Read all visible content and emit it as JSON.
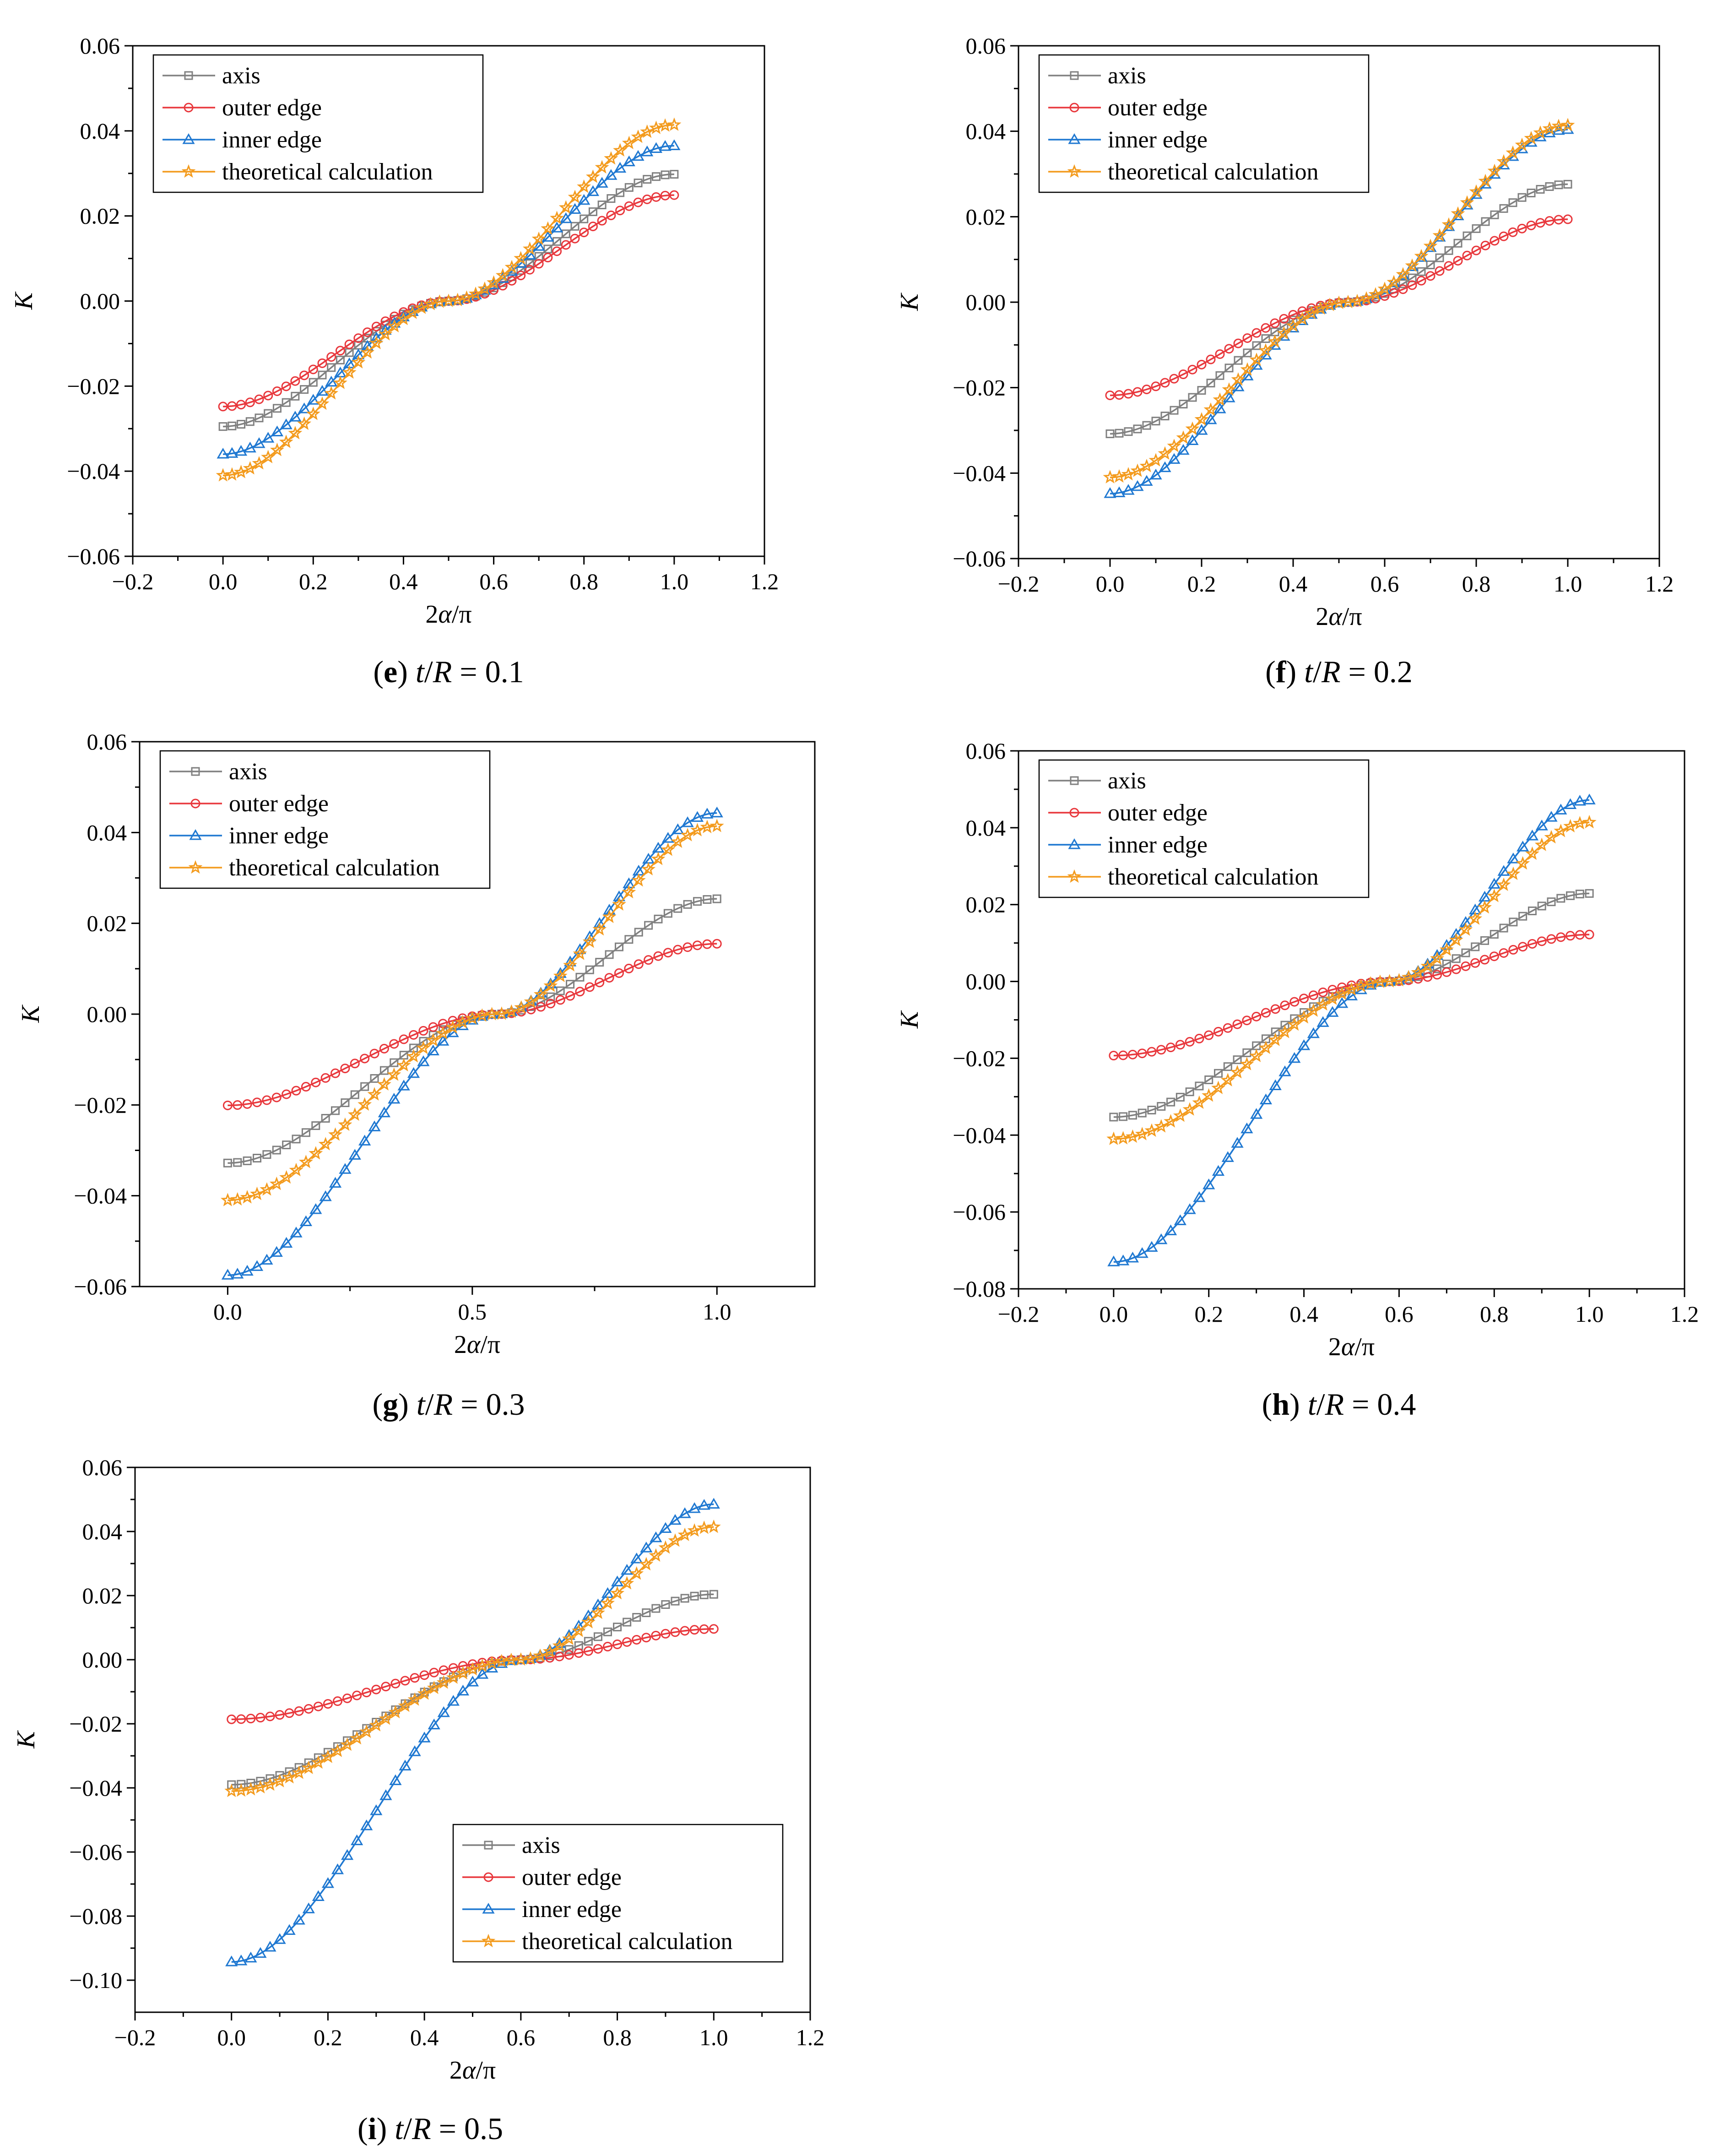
{
  "figure": {
    "legend_entries": [
      "axis",
      "outer edge",
      "inner edge",
      "theoretical calculation"
    ],
    "series_colors": {
      "axis": "#808080",
      "outer edge": "#e8383d",
      "inner edge": "#1f78d1",
      "theoretical calculation": "#f39b1e"
    },
    "marker_shapes": {
      "axis": "square",
      "outer edge": "circle",
      "inner edge": "triangle",
      "theoretical calculation": "star"
    }
  },
  "chart_data": [
    {
      "type": "line",
      "panel": "e",
      "caption_letter": "e",
      "caption_rest": " t/R = 0.1",
      "xlabel": "2α/π",
      "ylabel": "K",
      "xlim": [
        -0.2,
        1.2
      ],
      "ylim": [
        -0.06,
        0.06
      ],
      "xticks": [
        -0.2,
        0.0,
        0.2,
        0.4,
        0.6,
        0.8,
        1.0,
        1.2
      ],
      "xtick_labels": [
        "−0.2",
        "0.0",
        "0.2",
        "0.4",
        "0.6",
        "0.8",
        "1.0",
        "1.2"
      ],
      "yticks": [
        -0.06,
        -0.04,
        -0.02,
        0.0,
        0.02,
        0.04,
        0.06
      ],
      "ytick_labels": [
        "−0.06",
        "−0.04",
        "−0.02",
        "0.00",
        "0.02",
        "0.04",
        "0.06"
      ],
      "legend_position": "top-left",
      "x_zero_value": 0.5,
      "series": [
        {
          "name": "axis",
          "start": -0.0295,
          "end": 0.0298
        },
        {
          "name": "outer edge",
          "start": -0.0248,
          "end": 0.0249
        },
        {
          "name": "inner edge",
          "start": -0.036,
          "end": 0.0365
        },
        {
          "name": "theoretical calculation",
          "start": -0.041,
          "end": 0.0414
        }
      ]
    },
    {
      "type": "line",
      "panel": "f",
      "caption_letter": "f",
      "caption_rest": " t/R = 0.2",
      "xlabel": "2α/π",
      "ylabel": "K",
      "xlim": [
        -0.2,
        1.2
      ],
      "ylim": [
        -0.06,
        0.06
      ],
      "xticks": [
        -0.2,
        0.0,
        0.2,
        0.4,
        0.6,
        0.8,
        1.0,
        1.2
      ],
      "xtick_labels": [
        "−0.2",
        "0.0",
        "0.2",
        "0.4",
        "0.6",
        "0.8",
        "1.0",
        "1.2"
      ],
      "yticks": [
        -0.06,
        -0.04,
        -0.02,
        0.0,
        0.02,
        0.04,
        0.06
      ],
      "ytick_labels": [
        "−0.06",
        "−0.04",
        "−0.02",
        "0.00",
        "0.02",
        "0.04",
        "0.06"
      ],
      "legend_position": "top-left",
      "x_zero_value": 0.52,
      "series": [
        {
          "name": "axis",
          "start": -0.0308,
          "end": 0.0276
        },
        {
          "name": "outer edge",
          "start": -0.0218,
          "end": 0.0194
        },
        {
          "name": "inner edge",
          "start": -0.0448,
          "end": 0.0404
        },
        {
          "name": "theoretical calculation",
          "start": -0.041,
          "end": 0.0414
        }
      ]
    },
    {
      "type": "line",
      "panel": "g",
      "caption_letter": "g",
      "caption_rest": " t/R = 0.3",
      "xlabel": "2α/π",
      "ylabel": "K",
      "xlim": [
        -0.18,
        1.2
      ],
      "ylim": [
        -0.06,
        0.06
      ],
      "xticks": [
        0.0,
        0.5,
        1.0
      ],
      "xtick_labels": [
        "0.0",
        "0.5",
        "1.0"
      ],
      "yticks": [
        -0.06,
        -0.04,
        -0.02,
        0.0,
        0.02,
        0.04,
        0.06
      ],
      "ytick_labels": [
        "−0.06",
        "−0.04",
        "−0.02",
        "0.00",
        "0.02",
        "0.04",
        "0.06"
      ],
      "legend_position": "top-left",
      "x_zero_value": 0.55,
      "series": [
        {
          "name": "axis",
          "start": -0.0328,
          "end": 0.0254
        },
        {
          "name": "outer edge",
          "start": -0.0201,
          "end": 0.0155
        },
        {
          "name": "inner edge",
          "start": -0.0575,
          "end": 0.0443
        },
        {
          "name": "theoretical calculation",
          "start": -0.041,
          "end": 0.0414
        }
      ]
    },
    {
      "type": "line",
      "panel": "h",
      "caption_letter": "h",
      "caption_rest": " t/R = 0.4",
      "xlabel": "2α/π",
      "ylabel": "K",
      "xlim": [
        -0.2,
        1.2
      ],
      "ylim": [
        -0.08,
        0.06
      ],
      "xticks": [
        -0.2,
        0.0,
        0.2,
        0.4,
        0.6,
        0.8,
        1.0,
        1.2
      ],
      "xtick_labels": [
        "−0.2",
        "0.0",
        "0.2",
        "0.4",
        "0.6",
        "0.8",
        "1.0",
        "1.2"
      ],
      "yticks": [
        -0.08,
        -0.06,
        -0.04,
        -0.02,
        0.0,
        0.02,
        0.04,
        0.06
      ],
      "ytick_labels": [
        "−0.08",
        "−0.06",
        "−0.04",
        "−0.02",
        "0.00",
        "0.02",
        "0.04",
        "0.06"
      ],
      "legend_position": "top-left",
      "x_zero_value": 0.58,
      "series": [
        {
          "name": "axis",
          "start": -0.0353,
          "end": 0.0229
        },
        {
          "name": "outer edge",
          "start": -0.0193,
          "end": 0.0122
        },
        {
          "name": "inner edge",
          "start": -0.073,
          "end": 0.0472
        },
        {
          "name": "theoretical calculation",
          "start": -0.041,
          "end": 0.0414
        }
      ]
    },
    {
      "type": "line",
      "panel": "i",
      "caption_letter": "i",
      "caption_rest": " t/R = 0.5",
      "xlabel": "2α/π",
      "ylabel": "K",
      "xlim": [
        -0.2,
        1.2
      ],
      "ylim": [
        -0.11,
        0.06
      ],
      "xticks": [
        -0.2,
        0.0,
        0.2,
        0.4,
        0.6,
        0.8,
        1.0,
        1.2
      ],
      "xtick_labels": [
        "−0.2",
        "0.0",
        "0.2",
        "0.4",
        "0.6",
        "0.8",
        "1.0",
        "1.2"
      ],
      "yticks": [
        -0.1,
        -0.08,
        -0.06,
        -0.04,
        -0.02,
        0.0,
        0.02,
        0.04,
        0.06
      ],
      "ytick_labels": [
        "−0.10",
        "−0.08",
        "−0.06",
        "−0.04",
        "−0.02",
        "0.00",
        "0.02",
        "0.04",
        "0.06"
      ],
      "legend_position": "bottom-right",
      "x_zero_value": 0.6,
      "series": [
        {
          "name": "axis",
          "start": -0.039,
          "end": 0.0204
        },
        {
          "name": "outer edge",
          "start": -0.0186,
          "end": 0.0096
        },
        {
          "name": "inner edge",
          "start": -0.0943,
          "end": 0.0485
        },
        {
          "name": "theoretical calculation",
          "start": -0.041,
          "end": 0.0414
        }
      ]
    }
  ]
}
